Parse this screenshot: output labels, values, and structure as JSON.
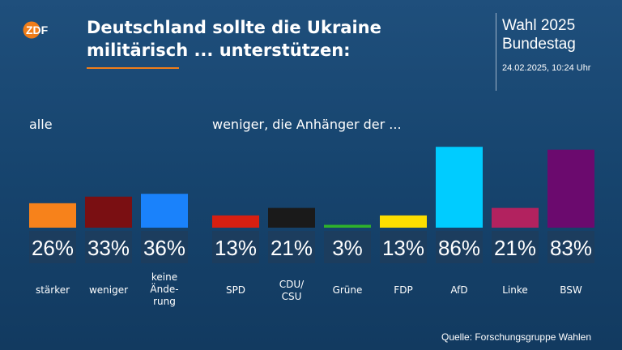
{
  "header": {
    "logo_text": "ZDF",
    "title_line1": "Deutschland sollte die Ukraine",
    "title_line2": "militärisch ... unterstützen:",
    "election_title": "Wahl 2025",
    "election_subtitle": "Bundestag",
    "timestamp": "24.02.2025, 10:24 Uhr"
  },
  "groups": {
    "all_label": "alle",
    "supporters_label": "weniger, die Anhänger der ..."
  },
  "source": "Quelle: Forschungsgruppe Wahlen",
  "colors": {
    "accent": "#f07d19",
    "background": "#17456f",
    "value_box": "#1c3d5e"
  },
  "chart_data": {
    "type": "bar",
    "title": "Deutschland sollte die Ukraine militärisch ... unterstützen:",
    "unit": "%",
    "ylim": [
      0,
      100
    ],
    "grid": false,
    "groups": [
      {
        "label": "alle",
        "bars": [
          {
            "label": "stärker",
            "value": 26,
            "value_label": "26%",
            "color": "#f7821b"
          },
          {
            "label": "weniger",
            "value": 33,
            "value_label": "33%",
            "color": "#7a0f12"
          },
          {
            "label": "keine Änderung",
            "label_lines": [
              "keine",
              "Ände-",
              "rung"
            ],
            "value": 36,
            "value_label": "36%",
            "color": "#1a82fb"
          }
        ]
      },
      {
        "label": "weniger, die Anhänger der ...",
        "bars": [
          {
            "label": "SPD",
            "value": 13,
            "value_label": "13%",
            "color": "#d71f11"
          },
          {
            "label": "CDU/CSU",
            "label_lines": [
              "CDU/",
              "CSU"
            ],
            "value": 21,
            "value_label": "21%",
            "color": "#1a1a1a"
          },
          {
            "label": "Grüne",
            "value": 3,
            "value_label": "3%",
            "color": "#2fb32a"
          },
          {
            "label": "FDP",
            "value": 13,
            "value_label": "13%",
            "color": "#fcde00"
          },
          {
            "label": "AfD",
            "value": 86,
            "value_label": "86%",
            "color": "#00ccff"
          },
          {
            "label": "Linke",
            "value": 21,
            "value_label": "21%",
            "color": "#b2225f"
          },
          {
            "label": "BSW",
            "value": 83,
            "value_label": "83%",
            "color": "#6b0a6e"
          }
        ]
      }
    ]
  }
}
